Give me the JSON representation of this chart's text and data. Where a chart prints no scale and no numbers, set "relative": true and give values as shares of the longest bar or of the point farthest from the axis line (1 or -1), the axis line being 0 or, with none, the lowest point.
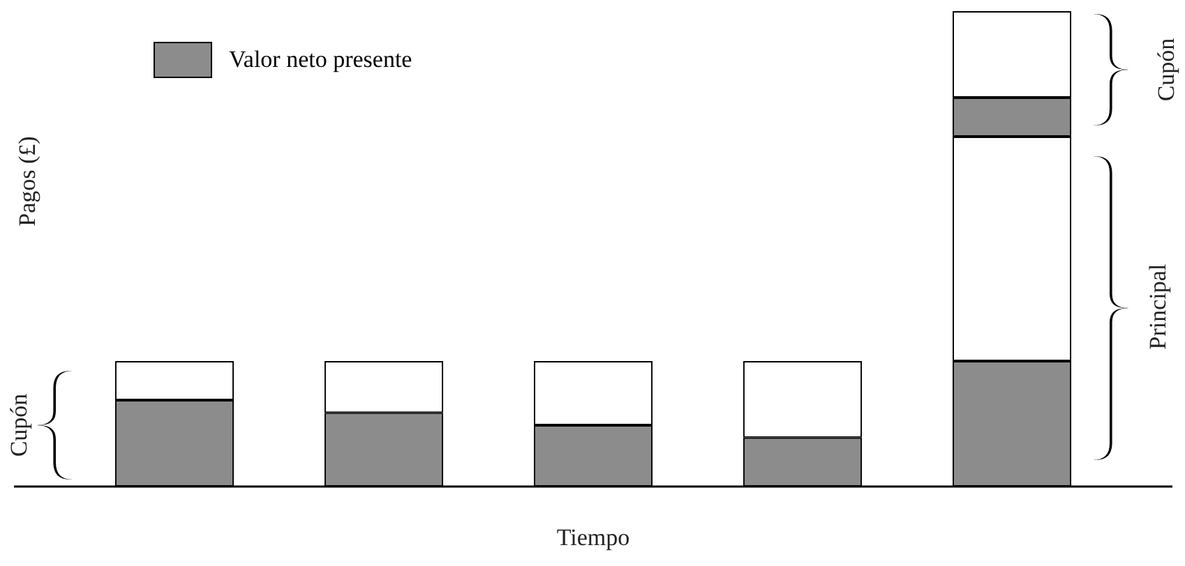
{
  "chart_data": {
    "type": "bar",
    "stacked": true,
    "relative": true,
    "xlabel": "Tiempo",
    "ylabel": "Pagos (£)",
    "categories": [
      null,
      null,
      null,
      null,
      null
    ],
    "legend": "top left",
    "tick_labels": false,
    "grid": false,
    "series": [
      {
        "name": "Valor neto presente",
        "color": "#8c8c8c",
        "values": [
          0.182,
          0.155,
          0.129,
          0.103,
          0.264
        ]
      },
      {
        "color": "#ffffff",
        "values": [
          0.082,
          0.109,
          0.135,
          0.161,
          0.472
        ]
      },
      {
        "color": "#8c8c8c",
        "values": [
          null,
          null,
          null,
          null,
          0.082
        ]
      },
      {
        "color": "#ffffff",
        "values": [
          null,
          null,
          null,
          null,
          0.182
        ]
      }
    ],
    "annotations": [
      "Cupón",
      "Cupón",
      "Principal"
    ]
  }
}
